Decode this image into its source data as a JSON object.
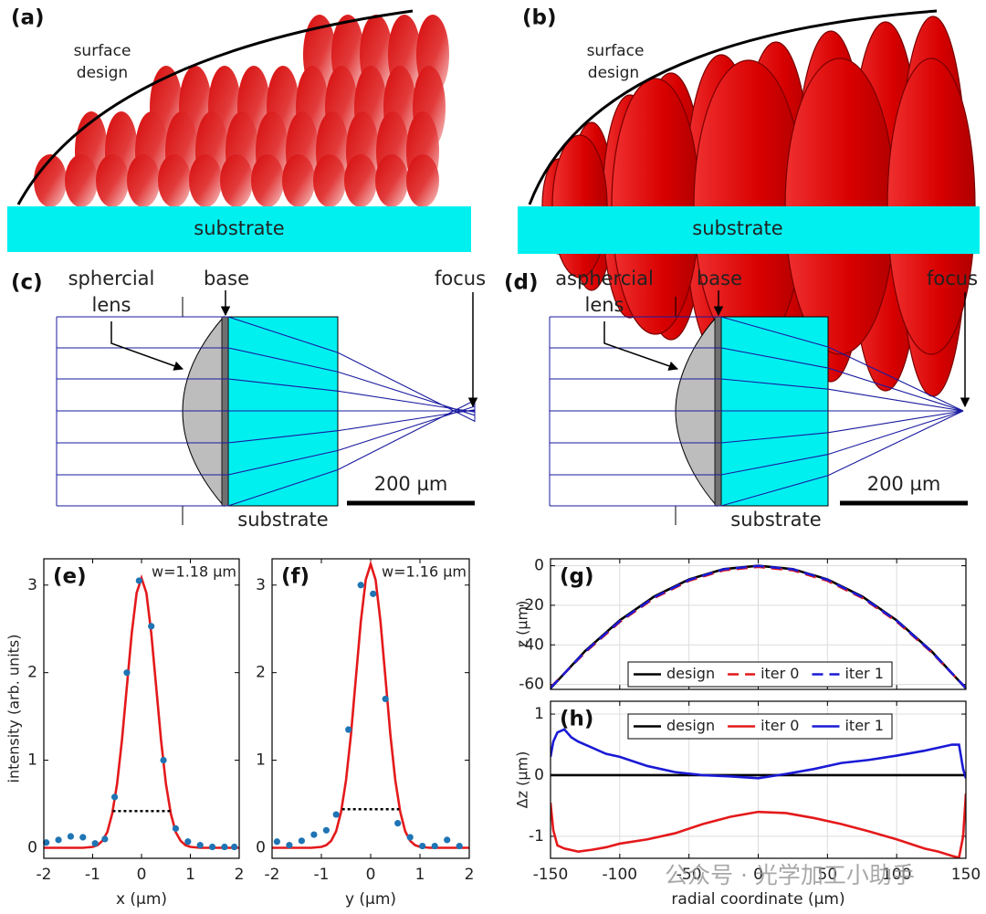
{
  "diagrams": {
    "a": {
      "label": "(a)",
      "surface_label": [
        "surface",
        "design"
      ],
      "substrate": "substrate"
    },
    "b": {
      "label": "(b)",
      "surface_label": [
        "surface",
        "design"
      ],
      "substrate": "substrate"
    },
    "c": {
      "label": "(c)",
      "lens_label": [
        "sphercial",
        "lens"
      ],
      "base": "base",
      "focus": "focus",
      "scale": "200 µm",
      "substrate": "substrate"
    },
    "d": {
      "label": "(d)",
      "lens_label": [
        "asphercial",
        "lens"
      ],
      "base": "base",
      "focus": "focus",
      "scale": "200 µm",
      "substrate": "substrate"
    }
  },
  "chart_data": [
    {
      "type": "line",
      "label": "(e)",
      "annotation": "w=1.18 µm",
      "xlabel": "x (µm)",
      "ylabel": "intensity (arb. units)",
      "xlim": [
        -2,
        2
      ],
      "xticks": [
        -2,
        -1,
        0,
        1,
        2
      ],
      "ylim": [
        -0.12,
        3.3
      ],
      "yticks": [
        0,
        1,
        2,
        3
      ],
      "series": [
        {
          "type": "line",
          "color": "#e4191b",
          "x": [
            -2,
            -1.2,
            -1,
            -0.9,
            -0.8,
            -0.7,
            -0.6,
            -0.5,
            -0.4,
            -0.3,
            -0.2,
            -0.1,
            0,
            0.1,
            0.2,
            0.3,
            0.4,
            0.5,
            0.6,
            0.7,
            0.8,
            0.9,
            1,
            1.2,
            2
          ],
          "values": [
            0,
            0,
            0.01,
            0.03,
            0.08,
            0.18,
            0.39,
            0.73,
            1.23,
            1.84,
            2.45,
            2.91,
            3.08,
            2.91,
            2.45,
            1.84,
            1.23,
            0.73,
            0.39,
            0.18,
            0.08,
            0.03,
            0.01,
            0,
            0
          ]
        },
        {
          "type": "scatter",
          "color": "#1f74b4",
          "x": [
            -1.95,
            -1.7,
            -1.45,
            -1.2,
            -0.95,
            -0.75,
            -0.55,
            -0.3,
            -0.05,
            0.2,
            0.45,
            0.7,
            0.95,
            1.2,
            1.45,
            1.7,
            1.9
          ],
          "values": [
            0.06,
            0.09,
            0.13,
            0.12,
            0.05,
            0.1,
            0.58,
            2.0,
            3.05,
            2.53,
            1.0,
            0.22,
            0.07,
            0.03,
            0.01,
            0.01,
            0.01
          ]
        },
        {
          "type": "line",
          "style": "dotted",
          "color": "#000000",
          "x": [
            -0.59,
            0.59
          ],
          "values": [
            0.42,
            0.42
          ]
        }
      ]
    },
    {
      "type": "line",
      "label": "(f)",
      "annotation": "w=1.16 µm",
      "xlabel": "y (µm)",
      "xlim": [
        -2,
        2
      ],
      "xticks": [
        -2,
        -1,
        0,
        1,
        2
      ],
      "ylim": [
        -0.12,
        3.3
      ],
      "yticks": [
        0,
        1,
        2,
        3
      ],
      "series": [
        {
          "type": "line",
          "color": "#e4191b",
          "x": [
            -2,
            -1.2,
            -1,
            -0.9,
            -0.8,
            -0.7,
            -0.6,
            -0.5,
            -0.4,
            -0.3,
            -0.2,
            -0.1,
            0,
            0.1,
            0.2,
            0.3,
            0.4,
            0.5,
            0.6,
            0.7,
            0.8,
            0.9,
            1,
            1.2,
            2
          ],
          "values": [
            0,
            0,
            0.01,
            0.03,
            0.08,
            0.19,
            0.41,
            0.77,
            1.29,
            1.94,
            2.58,
            3.06,
            3.24,
            3.06,
            2.58,
            1.94,
            1.29,
            0.77,
            0.41,
            0.19,
            0.08,
            0.03,
            0.01,
            0,
            0
          ]
        },
        {
          "type": "scatter",
          "color": "#1f74b4",
          "x": [
            -1.9,
            -1.65,
            -1.4,
            -1.15,
            -0.9,
            -0.7,
            -0.45,
            -0.2,
            0.05,
            0.3,
            0.55,
            0.8,
            1.05,
            1.3,
            1.55,
            1.8
          ],
          "values": [
            0.07,
            0.03,
            0.08,
            0.15,
            0.2,
            0.38,
            1.35,
            3.0,
            2.9,
            1.7,
            0.28,
            0.12,
            0.02,
            0.02,
            0.09,
            0.02
          ]
        },
        {
          "type": "line",
          "style": "dotted",
          "color": "#000000",
          "x": [
            -0.58,
            0.58
          ],
          "values": [
            0.44,
            0.44
          ]
        }
      ]
    },
    {
      "type": "line",
      "label": "(g)",
      "ylabel": "z (µm)",
      "grid": true,
      "xtick_labels": false,
      "legend": "lower center",
      "xlim": [
        -150,
        150
      ],
      "xticks": [
        -150,
        -100,
        -50,
        0,
        50,
        100,
        150
      ],
      "ylim": [
        -62.5,
        3.5
      ],
      "yticks": [
        -60,
        -40,
        -20,
        0
      ],
      "series": [
        {
          "name": "design",
          "type": "line",
          "color": "#000000",
          "x": [
            -150,
            -125,
            -100,
            -75,
            -50,
            -25,
            0,
            25,
            50,
            75,
            100,
            125,
            150
          ],
          "values": [
            -62,
            -43.1,
            -27.6,
            -15.5,
            -6.9,
            -1.7,
            0,
            -1.7,
            -6.9,
            -15.5,
            -27.6,
            -43.1,
            -62
          ]
        },
        {
          "name": "iter 0",
          "type": "line",
          "style": "dashed",
          "color": "#e4191b",
          "x": [
            -150,
            -125,
            -100,
            -75,
            -50,
            -25,
            0,
            25,
            50,
            75,
            100,
            125,
            150
          ],
          "values": [
            -61.5,
            -43.8,
            -28.4,
            -16.3,
            -7.6,
            -2.3,
            -0.6,
            -2.3,
            -7.6,
            -16.2,
            -28.2,
            -43.6,
            -61.8
          ]
        },
        {
          "name": "iter 1",
          "type": "line",
          "style": "dashed",
          "color": "#1a1ad6",
          "x": [
            -150,
            -125,
            -100,
            -75,
            -50,
            -25,
            0,
            25,
            50,
            75,
            100,
            125,
            150
          ],
          "values": [
            -61.8,
            -43.4,
            -28.0,
            -15.9,
            -7.2,
            -1.8,
            -0.1,
            -1.8,
            -7.1,
            -15.8,
            -27.8,
            -43.3,
            -61.9
          ]
        }
      ]
    },
    {
      "type": "line",
      "label": "(h)",
      "ylabel": "Δz (µm)",
      "xlabel": "radial coordinate (µm)",
      "grid": true,
      "legend": "upper center",
      "xlim": [
        -150,
        150
      ],
      "xticks": [
        -150,
        -100,
        -50,
        0,
        50,
        100,
        150
      ],
      "ylim": [
        -1.36,
        1.21
      ],
      "yticks": [
        -1,
        0,
        1
      ],
      "series": [
        {
          "name": "design",
          "type": "line",
          "color": "#000000",
          "x": [
            -150,
            150
          ],
          "values": [
            0,
            0
          ]
        },
        {
          "name": "iter 0",
          "type": "line",
          "color": "#e4191b",
          "x": [
            -150,
            -148,
            -145,
            -140,
            -130,
            -120,
            -110,
            -100,
            -80,
            -60,
            -40,
            -20,
            0,
            20,
            40,
            60,
            80,
            100,
            120,
            130,
            140,
            145,
            148,
            150
          ],
          "values": [
            -0.45,
            -0.9,
            -1.15,
            -1.2,
            -1.25,
            -1.22,
            -1.18,
            -1.12,
            -1.05,
            -0.95,
            -0.8,
            -0.68,
            -0.6,
            -0.62,
            -0.7,
            -0.8,
            -0.92,
            -1.05,
            -1.2,
            -1.25,
            -1.32,
            -1.35,
            -1.0,
            -0.3
          ]
        },
        {
          "name": "iter 1",
          "type": "line",
          "color": "#1a1ad6",
          "x": [
            -150,
            -148,
            -145,
            -140,
            -135,
            -130,
            -120,
            -110,
            -100,
            -80,
            -60,
            -40,
            -20,
            0,
            20,
            40,
            60,
            80,
            100,
            120,
            130,
            140,
            145,
            148,
            150
          ],
          "values": [
            0.3,
            0.55,
            0.7,
            0.75,
            0.62,
            0.55,
            0.45,
            0.35,
            0.3,
            0.15,
            0.05,
            0,
            -0.02,
            -0.05,
            0.02,
            0.1,
            0.2,
            0.25,
            0.32,
            0.4,
            0.45,
            0.5,
            0.5,
            0.1,
            -0.05
          ]
        }
      ]
    }
  ],
  "watermark": "公众号 · 光学加工小助手"
}
